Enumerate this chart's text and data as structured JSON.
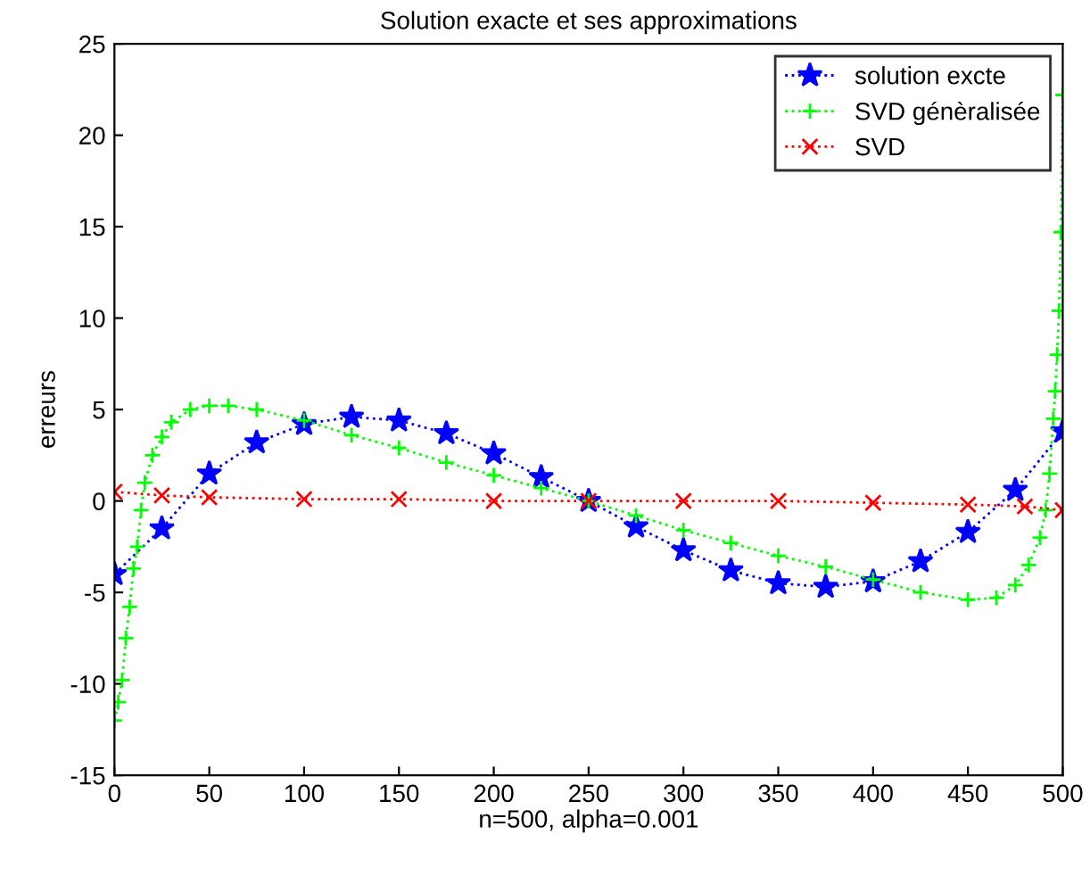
{
  "chart_data": {
    "type": "line",
    "title": "Solution exacte et ses approximations",
    "xlabel": "n=500, alpha=0.001",
    "ylabel": "erreurs",
    "xlim": [
      0,
      500
    ],
    "ylim": [
      -15,
      25
    ],
    "xticks": [
      0,
      50,
      100,
      150,
      200,
      250,
      300,
      350,
      400,
      450,
      500
    ],
    "yticks": [
      -15,
      -10,
      -5,
      0,
      5,
      10,
      15,
      20,
      25
    ],
    "grid": false,
    "legend": "top right",
    "line_style": "dotted",
    "series": [
      {
        "name": "solution excte",
        "color": "#0000ff",
        "marker": "star",
        "x": [
          0,
          25,
          50,
          75,
          100,
          125,
          150,
          175,
          200,
          225,
          250,
          275,
          300,
          325,
          350,
          375,
          400,
          425,
          450,
          475,
          500
        ],
        "values": [
          -4,
          -1.5,
          1.5,
          3.2,
          4.2,
          4.6,
          4.4,
          3.7,
          2.6,
          1.3,
          0,
          -1.4,
          -2.7,
          -3.8,
          -4.5,
          -4.7,
          -4.4,
          -3.3,
          -1.7,
          0.6,
          3.8
        ]
      },
      {
        "name": "SVD génèralisée",
        "color": "#00ff00",
        "marker": "cross",
        "x": [
          0,
          2,
          4,
          6,
          8,
          10,
          12,
          14,
          16,
          20,
          25,
          30,
          40,
          50,
          60,
          75,
          100,
          125,
          150,
          175,
          200,
          225,
          250,
          275,
          300,
          325,
          350,
          375,
          400,
          425,
          450,
          465,
          475,
          482,
          488,
          491,
          493,
          495,
          496,
          497,
          498,
          499,
          500
        ],
        "values": [
          -12,
          -11,
          -9.8,
          -7.5,
          -5.8,
          -3.7,
          -2.5,
          -0.5,
          1,
          2.5,
          3.5,
          4.3,
          5,
          5.2,
          5.2,
          5,
          4.4,
          3.6,
          2.9,
          2.1,
          1.4,
          0.7,
          0,
          -0.8,
          -1.6,
          -2.3,
          -3,
          -3.6,
          -4.3,
          -5,
          -5.4,
          -5.3,
          -4.6,
          -3.5,
          -2,
          -0.5,
          1.5,
          4.5,
          6,
          8,
          10.4,
          14.7,
          22.2
        ]
      },
      {
        "name": "SVD",
        "color": "#ff0000",
        "marker": "x",
        "x": [
          0,
          25,
          50,
          100,
          150,
          200,
          250,
          300,
          350,
          400,
          450,
          480,
          500
        ],
        "values": [
          0.5,
          0.3,
          0.2,
          0.1,
          0.1,
          0,
          0,
          0,
          0,
          -0.1,
          -0.2,
          -0.3,
          -0.5
        ]
      }
    ]
  }
}
